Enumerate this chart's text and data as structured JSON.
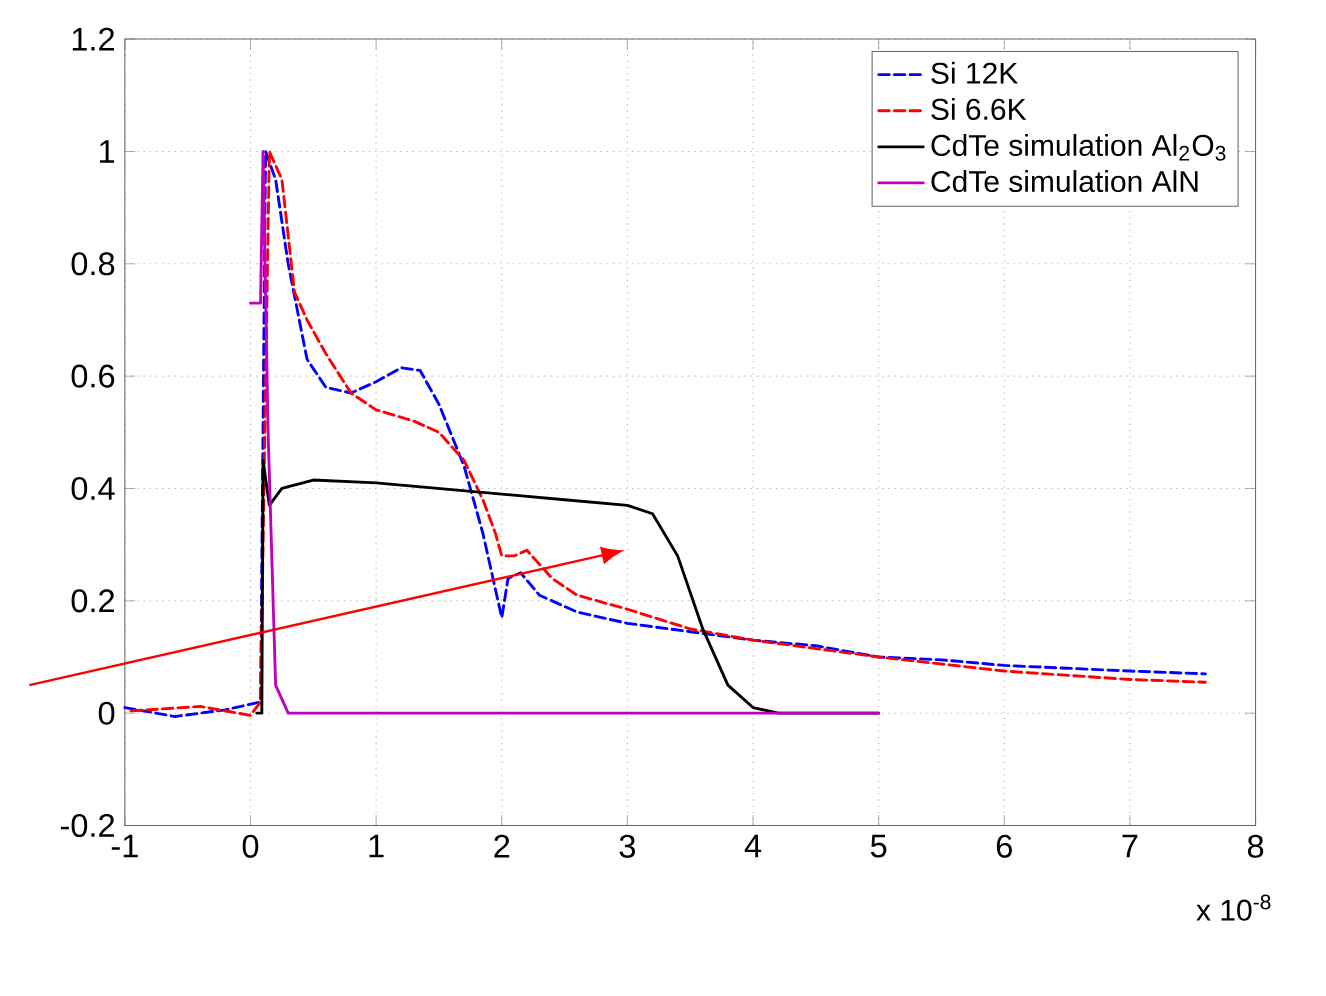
{
  "chart_data": {
    "type": "line",
    "xlim": [
      -1,
      8
    ],
    "ylim": [
      -0.2,
      1.2
    ],
    "xticks": [
      -1,
      0,
      1,
      2,
      3,
      4,
      5,
      6,
      7,
      8
    ],
    "yticks": [
      -0.2,
      0,
      0.2,
      0.4,
      0.6,
      0.8,
      1,
      1.2
    ],
    "grid": true,
    "legend": "top right",
    "marker": "none",
    "annotations": [
      "x 10$^{-8}$"
    ],
    "series": [
      {
        "name": "Si 12K",
        "color": "#0000ff",
        "line_style": "dashed",
        "x": [
          -1,
          -0.6,
          -0.2,
          0.08,
          0.12,
          0.2,
          0.3,
          0.45,
          0.6,
          0.8,
          1.0,
          1.2,
          1.35,
          1.5,
          1.7,
          1.85,
          1.95,
          2.0,
          2.05,
          2.15,
          2.3,
          2.6,
          3.0,
          3.5,
          4.0,
          4.5,
          5.0,
          5.5,
          6.0,
          6.5,
          7.0,
          7.6
        ],
        "values": [
          0.01,
          -0.006,
          0.006,
          0.02,
          1.0,
          0.95,
          0.8,
          0.63,
          0.58,
          0.57,
          0.59,
          0.615,
          0.61,
          0.55,
          0.44,
          0.32,
          0.22,
          0.17,
          0.24,
          0.25,
          0.21,
          0.18,
          0.16,
          0.145,
          0.13,
          0.12,
          0.1,
          0.095,
          0.085,
          0.08,
          0.075,
          0.07
        ]
      },
      {
        "name": "Si 6.6K",
        "color": "#ff0000",
        "line_style": "dashed",
        "x": [
          -0.95,
          -0.4,
          0,
          0.08,
          0.15,
          0.25,
          0.35,
          0.45,
          0.6,
          0.8,
          1.0,
          1.3,
          1.5,
          1.7,
          1.85,
          1.95,
          2.0,
          2.1,
          2.2,
          2.4,
          2.6,
          3.0,
          3.5,
          4.0,
          5.0,
          6.0,
          7.0,
          7.6
        ],
        "values": [
          0.004,
          0.012,
          -0.004,
          0.02,
          1.0,
          0.95,
          0.75,
          0.7,
          0.64,
          0.57,
          0.54,
          0.52,
          0.5,
          0.45,
          0.38,
          0.32,
          0.28,
          0.28,
          0.29,
          0.24,
          0.21,
          0.185,
          0.15,
          0.13,
          0.1,
          0.075,
          0.06,
          0.055
        ]
      },
      {
        "name": "CdTe simulation Al$_{2}$O$_{3}$",
        "color": "#000000",
        "line_style": "solid",
        "x": [
          0.05,
          0.09,
          0.1,
          0.15,
          0.25,
          0.5,
          1.0,
          2.0,
          2.5,
          3.0,
          3.2,
          3.4,
          3.6,
          3.8,
          4.0,
          4.2,
          5.0
        ],
        "values": [
          0.0,
          0.0,
          0.45,
          0.37,
          0.4,
          0.415,
          0.41,
          0.39,
          0.38,
          0.37,
          0.355,
          0.28,
          0.15,
          0.05,
          0.01,
          0.0,
          0.0
        ]
      },
      {
        "name": "CdTe simulation AlN",
        "color": "#bf00bf",
        "line_style": "solid",
        "x": [
          0.0,
          0.08,
          0.1,
          0.14,
          0.2,
          0.3,
          5.0
        ],
        "values": [
          0.73,
          0.73,
          1.0,
          0.5,
          0.05,
          0.0,
          0.0
        ]
      }
    ]
  }
}
